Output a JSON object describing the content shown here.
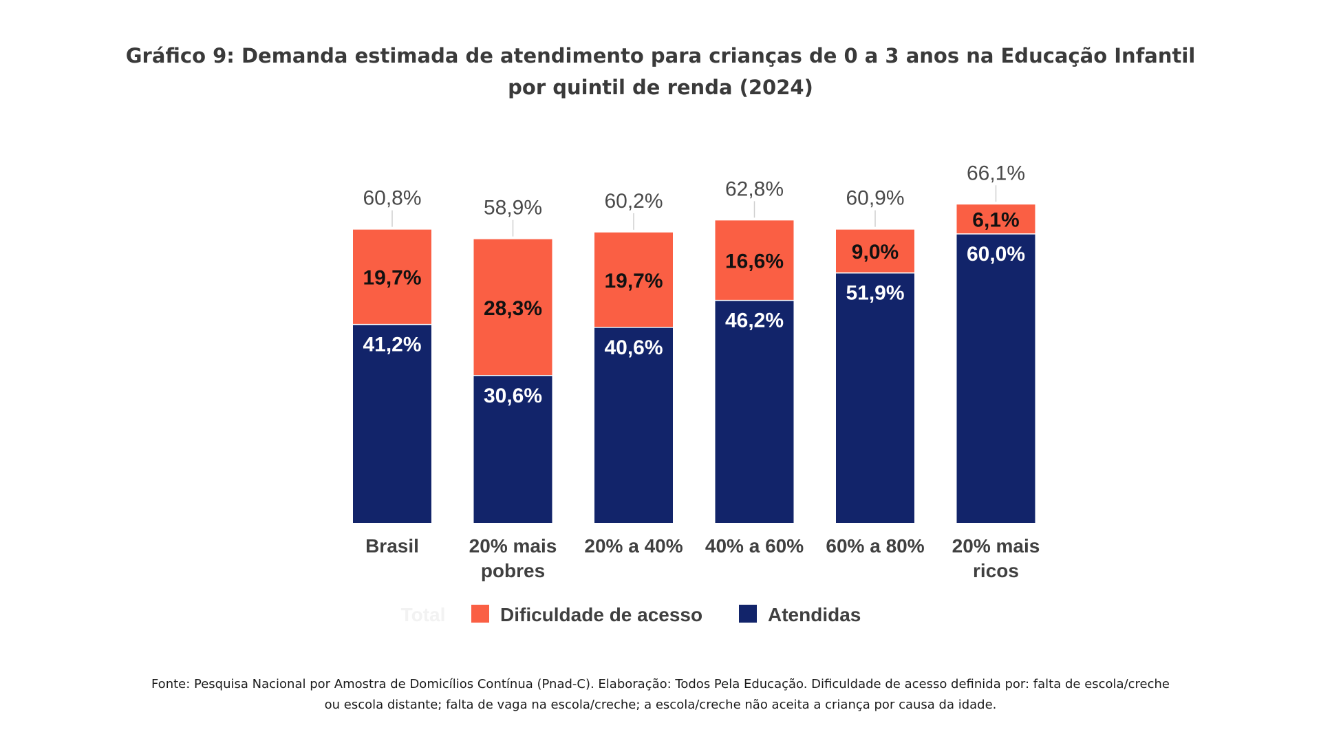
{
  "page": {
    "title_line1": "Gráfico 9:  Demanda estimada de atendimento para crianças de 0 a 3 anos na Educação Infantil",
    "title_line2": "por quintil de renda (2024)",
    "source_line1": "Fonte: Pesquisa Nacional por Amostra de Domicílios Contínua (Pnad-C). Elaboração: Todos Pela Educação. Dificuldade de acesso definida por: falta de escola/creche",
    "source_line2": "ou escola distante; falta de vaga na escola/creche; a escola/creche não aceita a criança por causa da idade."
  },
  "chart_data": {
    "type": "bar",
    "stacked": true,
    "title": "Gráfico 9:  Demanda estimada de atendimento para crianças de 0 a 3 anos na Educação Infantil por quintil de renda (2024)",
    "xlabel": "",
    "ylabel": "",
    "ylim": [
      0,
      70
    ],
    "grid": false,
    "legend_position": "bottom",
    "categories": [
      [
        "Brasil"
      ],
      [
        "20% mais",
        "pobres"
      ],
      [
        "20% a 40%"
      ],
      [
        "40% a 60%"
      ],
      [
        "60% a 80%"
      ],
      [
        "20% mais",
        "ricos"
      ]
    ],
    "series": [
      {
        "name": "Atendidas",
        "color": "#12246a",
        "values": [
          41.2,
          30.6,
          40.6,
          46.2,
          51.9,
          60.0
        ],
        "labels": [
          "41,2%",
          "30,6%",
          "40,6%",
          "46,2%",
          "51,9%",
          "60,0%"
        ]
      },
      {
        "name": "Dificuldade de acesso",
        "color": "#fa5f44",
        "values": [
          19.7,
          28.3,
          19.7,
          16.6,
          9.0,
          6.1
        ],
        "labels": [
          "19,7%",
          "28,3%",
          "19,7%",
          "16,6%",
          "9,0%",
          "6,1%"
        ]
      }
    ],
    "totals": {
      "name": "Total",
      "values": [
        60.8,
        58.9,
        60.2,
        62.8,
        60.9,
        66.1
      ],
      "labels": [
        "60,8%",
        "58,9%",
        "60,2%",
        "62,8%",
        "60,9%",
        "66,1%"
      ]
    },
    "legend": [
      "Total",
      "Dificuldade de acesso",
      "Atendidas"
    ]
  }
}
